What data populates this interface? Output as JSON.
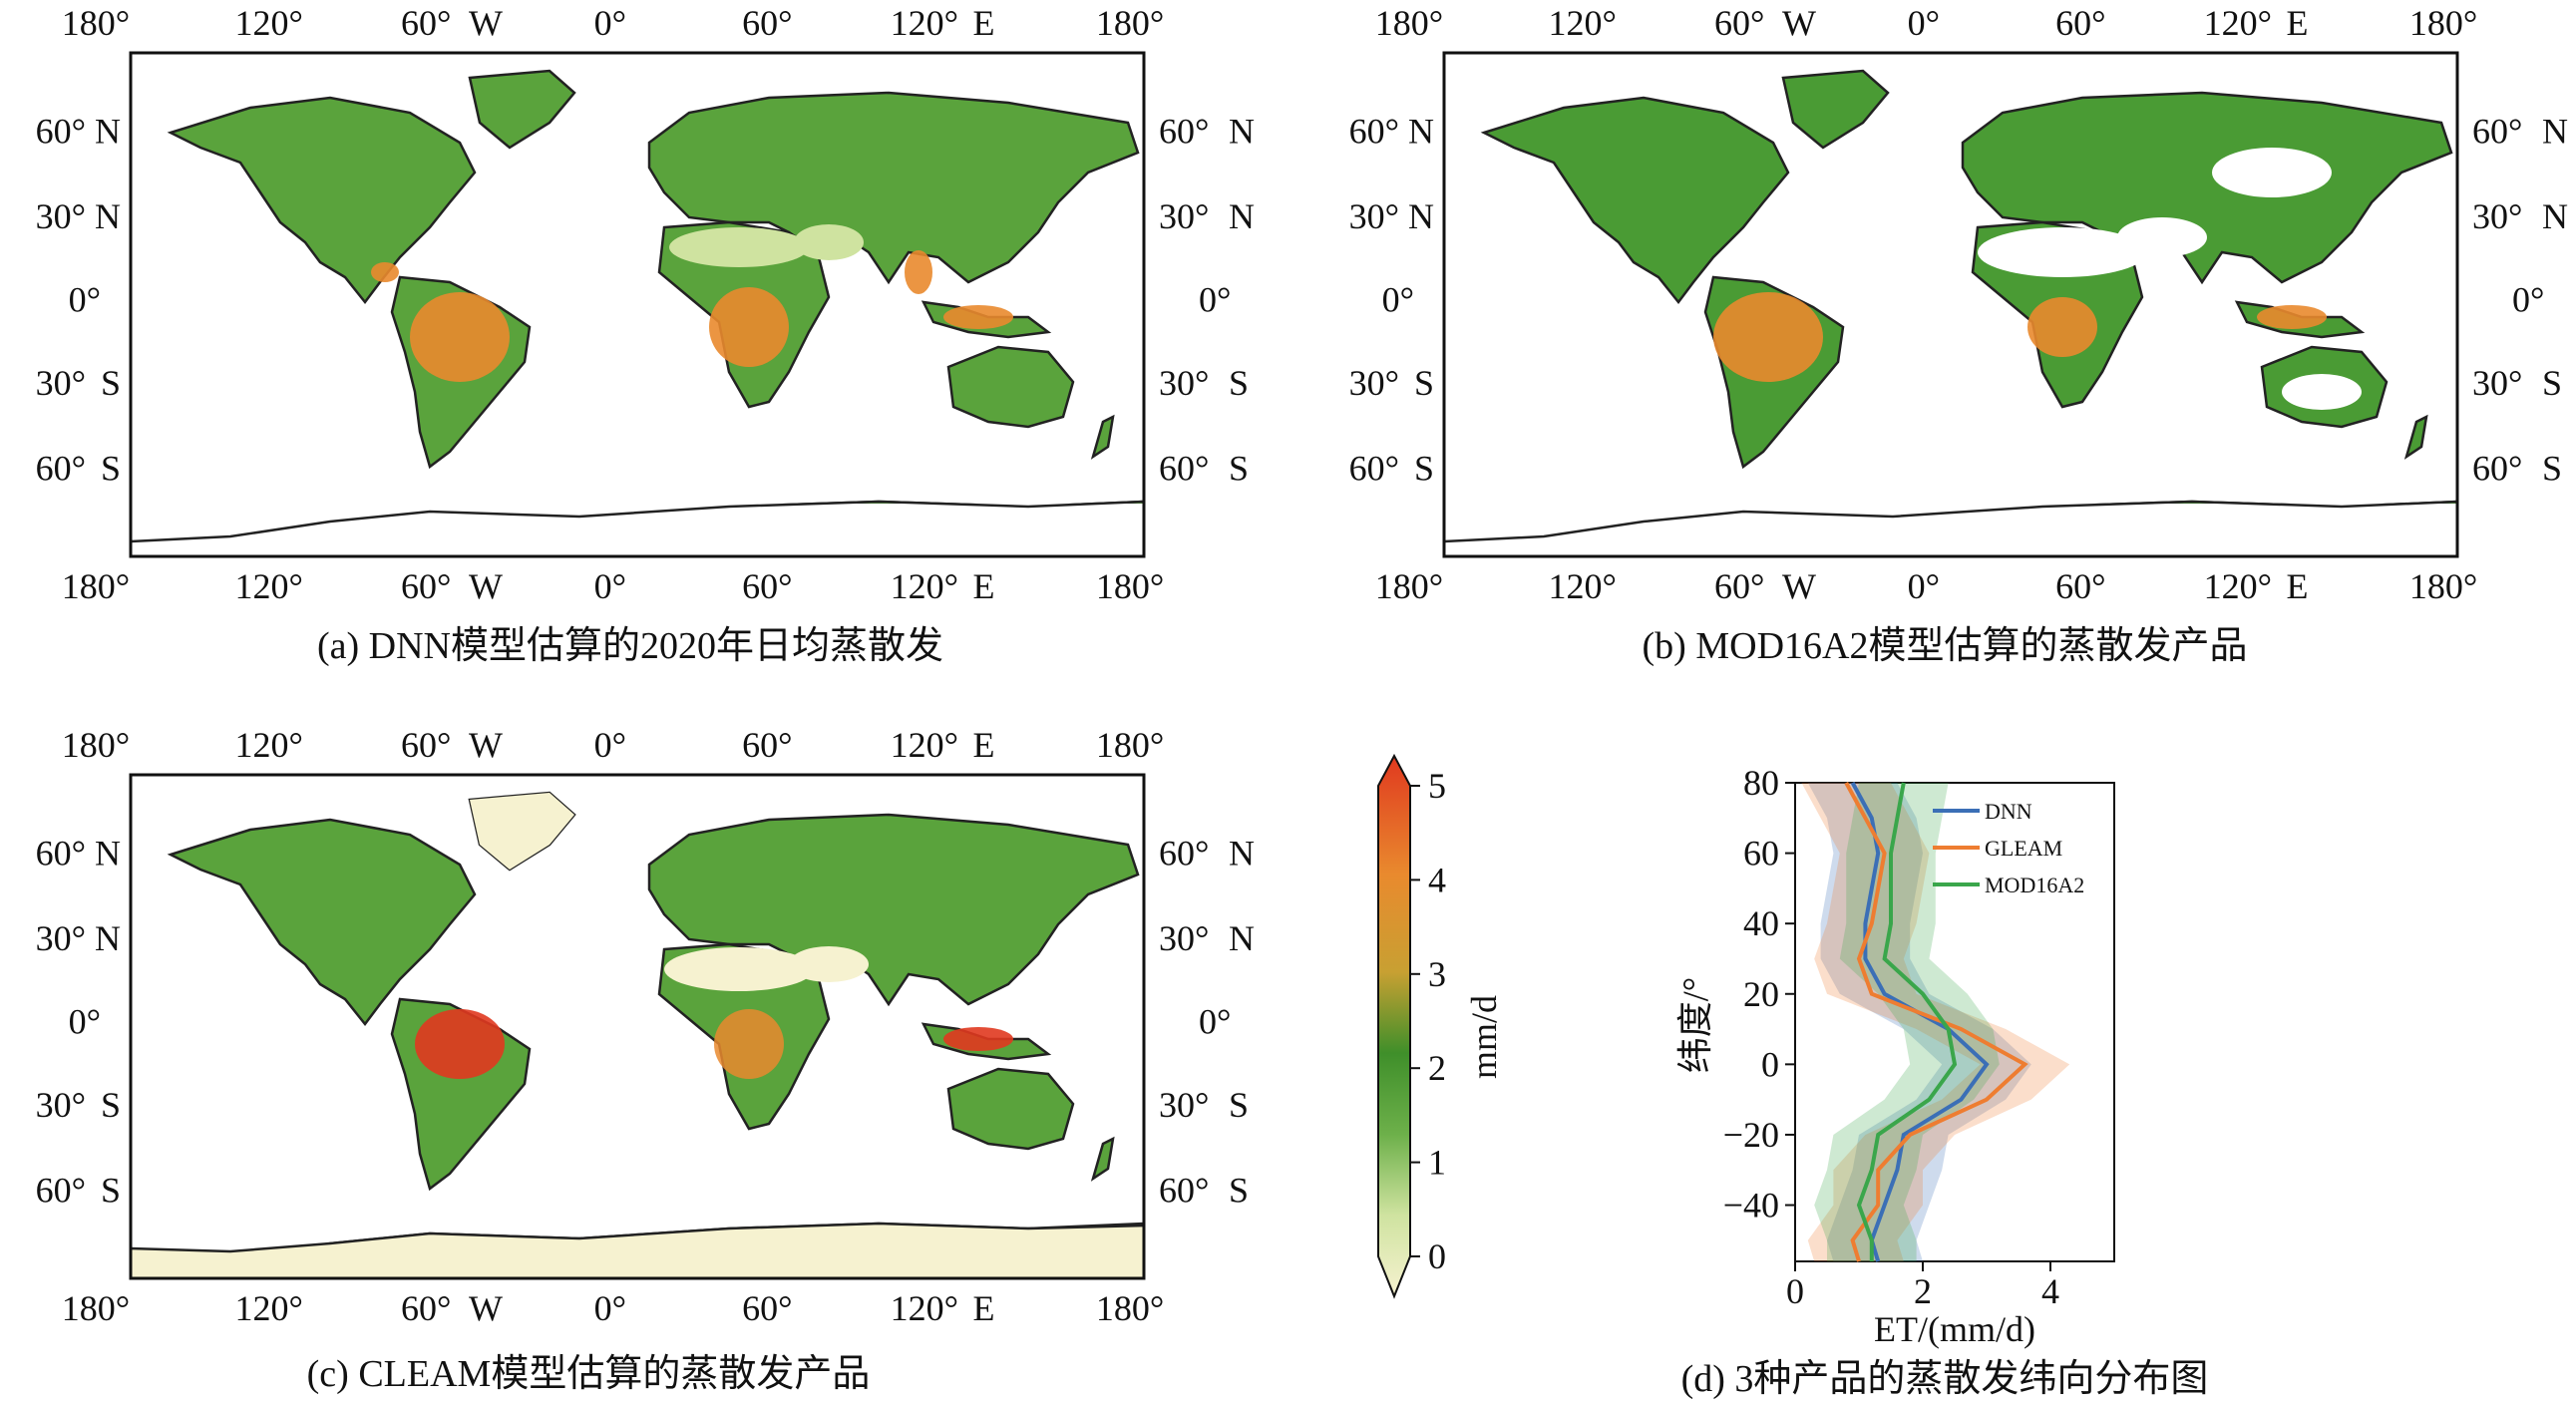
{
  "panels": {
    "a": {
      "caption": "(a) DNN模型估算的2020年日均蒸散发"
    },
    "b": {
      "caption": "(b) MOD16A2模型估算的蒸散发产品"
    },
    "c": {
      "caption": "(c) CLEAM模型估算的蒸散发产品"
    },
    "d": {
      "caption": "(d) 3种产品的蒸散发纬向分布图"
    }
  },
  "map_axes": {
    "lon_ticks": [
      "180°",
      "120°",
      "60°",
      "W",
      "0°",
      "60°",
      "120°",
      "E",
      "180°"
    ],
    "lat_ticks_left": [
      "60°",
      "N",
      "30°",
      "N",
      "0°",
      "30°",
      "S",
      "60°",
      "S"
    ]
  },
  "colorbar": {
    "label": "mm/d",
    "ticks": [
      "5",
      "4",
      "3",
      "2",
      "1",
      "0"
    ],
    "colors": [
      "#f6f2d0",
      "#cfe3a0",
      "#6db04a",
      "#3f8f2a",
      "#c8a032",
      "#e98a2e",
      "#e0391f"
    ]
  },
  "chart_data": {
    "type": "line",
    "xlabel": "ET/(mm/d)",
    "ylabel": "纬度/°",
    "xlim": [
      0,
      5
    ],
    "ylim": [
      -56,
      80
    ],
    "x_ticks": [
      "0",
      "2",
      "4"
    ],
    "y_ticks": [
      "80",
      "60",
      "40",
      "20",
      "0",
      "−20",
      "−40"
    ],
    "y": [
      80,
      70,
      60,
      50,
      40,
      30,
      20,
      10,
      0,
      -10,
      -20,
      -30,
      -40,
      -50,
      -56
    ],
    "series": [
      {
        "name": "DNN",
        "color": "#3b6fb6",
        "values": [
          0.9,
          1.2,
          1.3,
          1.2,
          1.1,
          1.1,
          1.4,
          2.4,
          3.0,
          2.6,
          1.7,
          1.6,
          1.4,
          1.2,
          1.3
        ]
      },
      {
        "name": "GLEAM",
        "color": "#ee7d31",
        "values": [
          0.8,
          1.1,
          1.4,
          1.3,
          1.2,
          1.0,
          1.2,
          2.6,
          3.6,
          3.0,
          1.8,
          1.3,
          1.3,
          0.9,
          1.0
        ]
      },
      {
        "name": "MOD16A2",
        "color": "#3aa64b",
        "values": [
          1.7,
          1.6,
          1.5,
          1.5,
          1.5,
          1.4,
          2.0,
          2.4,
          2.5,
          2.1,
          1.3,
          1.2,
          1.0,
          1.2,
          1.2
        ]
      }
    ]
  }
}
